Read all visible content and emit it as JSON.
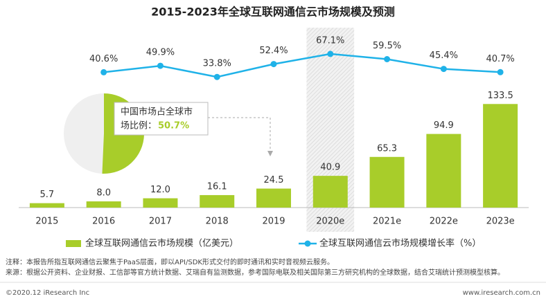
{
  "chart_data": {
    "type": "bar-line",
    "title": "2015-2023年全球互联网通信云市场规模及预测",
    "categories": [
      "2015",
      "2016",
      "2017",
      "2018",
      "2019",
      "2020e",
      "2021e",
      "2022e",
      "2023e"
    ],
    "highlight_index": 5,
    "ylim": [
      0,
      140
    ],
    "y2lim": [
      0,
      100
    ],
    "series": [
      {
        "name": "全球互联网通信云市场规模（亿美元）",
        "type": "bar",
        "color": "#a8cd2a",
        "values": [
          5.7,
          8.0,
          12.0,
          16.1,
          24.5,
          40.9,
          65.3,
          94.9,
          133.5
        ],
        "value_labels": [
          "5.7",
          "8.0",
          "12.0",
          "16.1",
          "24.5",
          "40.9",
          "65.3",
          "94.9",
          "133.5"
        ]
      },
      {
        "name": "全球互联网通信云市场规模增长率（%）",
        "type": "line",
        "axis": "y2",
        "color": "#1fb2e8",
        "values": [
          null,
          40.6,
          49.9,
          33.8,
          52.4,
          67.1,
          59.5,
          45.4,
          40.7
        ],
        "value_labels": [
          null,
          "40.6%",
          "49.9%",
          "33.8%",
          "52.4%",
          "67.1%",
          "59.5%",
          "45.4%",
          "40.7%"
        ]
      }
    ],
    "annotation": {
      "lines": [
        "中国市场占全球市",
        "场比例："
      ],
      "share": 50.7,
      "share_label": "50.7%",
      "share_color": "#a8cd2a",
      "rest_color": "#efefef"
    },
    "notes": [
      "注释：本报告所指互联网通信云聚焦于PaaS层面，即以API/SDK形式交付的即时通讯和实时音视频云服务。",
      "来源：根据公开资料、企业财报、工信部等官方统计数据、艾瑞自有监测数据，参考国际电联及相关国际第三方研究机构的全球数据，结合艾瑞统计预测模型核算。"
    ],
    "footer_left": "©2020.12 iResearch Inc",
    "footer_right": "www.iresearch.com.cn"
  }
}
